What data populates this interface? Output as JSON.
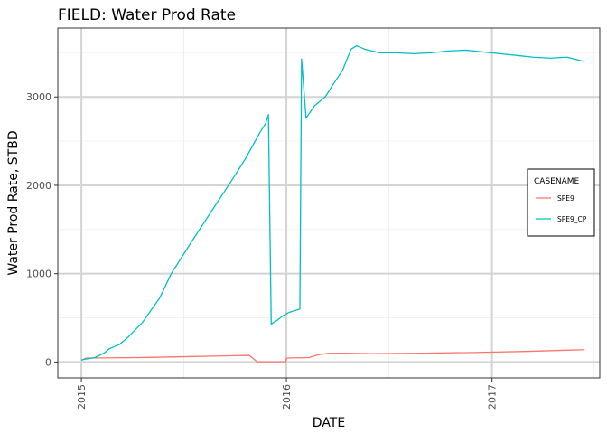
{
  "chart_data": {
    "type": "line",
    "title": "FIELD:  Water Prod Rate",
    "xlabel": "DATE",
    "ylabel": "Water Prod Rate, STBD",
    "x_ticks": [
      {
        "date": "2015-01-01",
        "label": "2015"
      },
      {
        "date": "2016-01-01",
        "label": "2016"
      },
      {
        "date": "2017-01-01",
        "label": "2017"
      }
    ],
    "y_ticks": [
      0,
      1000,
      2000,
      3000
    ],
    "xlim": [
      "2014-11-20",
      "2017-07-12"
    ],
    "ylim": [
      -180,
      3780
    ],
    "grid": true,
    "legend": {
      "title": "CASENAME",
      "placement": "right",
      "entries": [
        "SPE9",
        "SPE9_CP"
      ]
    },
    "series": [
      {
        "name": "SPE9",
        "color": "#F8766D",
        "points": [
          [
            "2015-01-01",
            20
          ],
          [
            "2015-01-10",
            45
          ],
          [
            "2015-03-01",
            48
          ],
          [
            "2015-05-01",
            52
          ],
          [
            "2015-07-01",
            60
          ],
          [
            "2015-09-01",
            68
          ],
          [
            "2015-10-27",
            75
          ],
          [
            "2015-11-10",
            3
          ],
          [
            "2015-12-31",
            3
          ],
          [
            "2016-01-01",
            45
          ],
          [
            "2016-02-10",
            50
          ],
          [
            "2016-02-25",
            80
          ],
          [
            "2016-03-15",
            98
          ],
          [
            "2016-04-10",
            100
          ],
          [
            "2016-06-01",
            95
          ],
          [
            "2016-09-01",
            100
          ],
          [
            "2016-12-01",
            108
          ],
          [
            "2017-03-01",
            120
          ],
          [
            "2017-06-15",
            140
          ]
        ]
      },
      {
        "name": "SPE9_CP",
        "color": "#00BFC4",
        "points": [
          [
            "2015-01-01",
            20
          ],
          [
            "2015-01-05",
            30
          ],
          [
            "2015-01-25",
            50
          ],
          [
            "2015-02-10",
            100
          ],
          [
            "2015-02-20",
            150
          ],
          [
            "2015-03-10",
            200
          ],
          [
            "2015-03-25",
            280
          ],
          [
            "2015-04-20",
            450
          ],
          [
            "2015-05-20",
            720
          ],
          [
            "2015-06-10",
            1000
          ],
          [
            "2015-07-15",
            1350
          ],
          [
            "2015-08-20",
            1700
          ],
          [
            "2015-09-20",
            2000
          ],
          [
            "2015-10-20",
            2300
          ],
          [
            "2015-11-15",
            2600
          ],
          [
            "2015-11-25",
            2700
          ],
          [
            "2015-11-30",
            2800
          ],
          [
            "2015-12-05",
            430
          ],
          [
            "2015-12-15",
            470
          ],
          [
            "2015-12-25",
            520
          ],
          [
            "2016-01-05",
            560
          ],
          [
            "2016-01-15",
            580
          ],
          [
            "2016-01-25",
            600
          ],
          [
            "2016-01-28",
            3430
          ],
          [
            "2016-02-05",
            2760
          ],
          [
            "2016-02-20",
            2900
          ],
          [
            "2016-03-10",
            3000
          ],
          [
            "2016-03-25",
            3150
          ],
          [
            "2016-04-10",
            3300
          ],
          [
            "2016-04-25",
            3540
          ],
          [
            "2016-05-05",
            3580
          ],
          [
            "2016-05-20",
            3540
          ],
          [
            "2016-06-15",
            3500
          ],
          [
            "2016-07-15",
            3500
          ],
          [
            "2016-08-15",
            3490
          ],
          [
            "2016-09-15",
            3500
          ],
          [
            "2016-10-15",
            3520
          ],
          [
            "2016-11-15",
            3530
          ],
          [
            "2016-12-15",
            3510
          ],
          [
            "2017-01-15",
            3490
          ],
          [
            "2017-02-15",
            3470
          ],
          [
            "2017-03-15",
            3450
          ],
          [
            "2017-04-15",
            3440
          ],
          [
            "2017-05-15",
            3450
          ],
          [
            "2017-06-15",
            3400
          ]
        ]
      }
    ]
  }
}
